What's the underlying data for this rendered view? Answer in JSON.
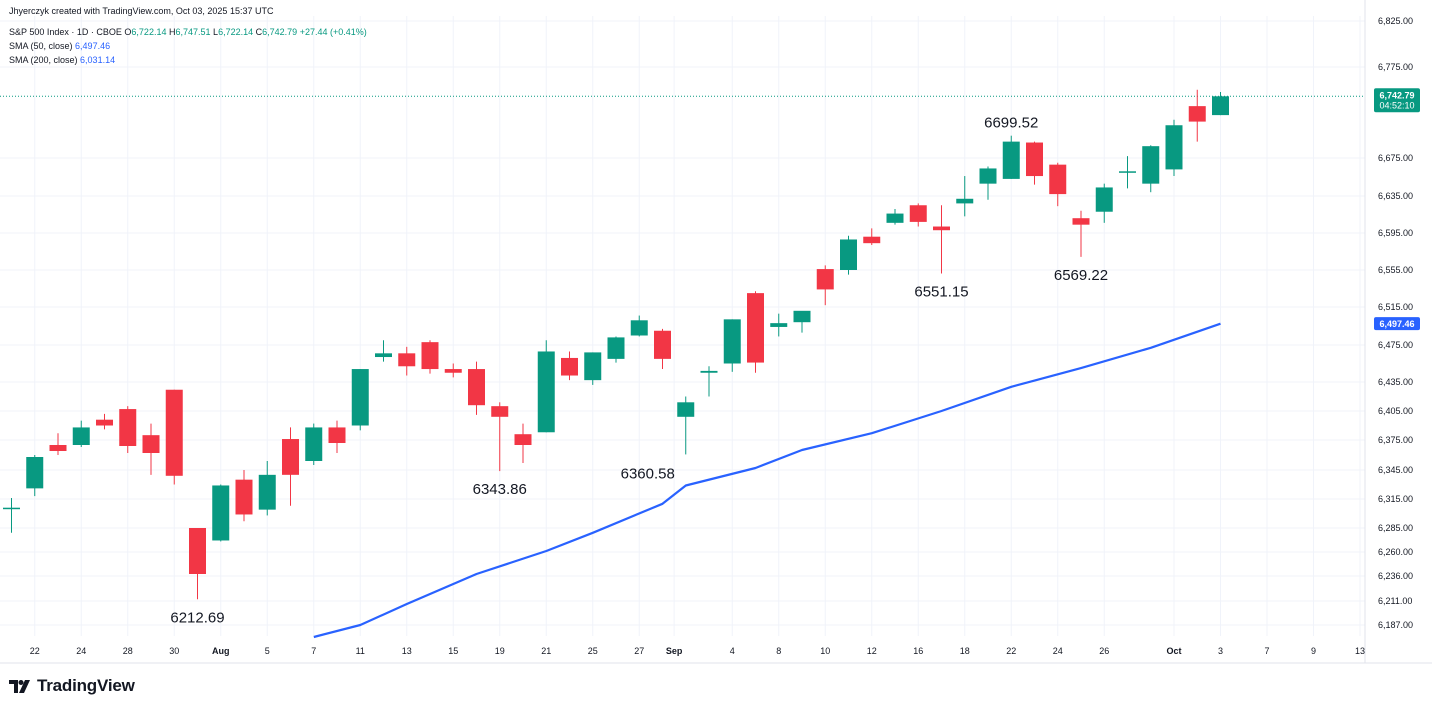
{
  "header": {
    "created_by": "Jhyerczyk created with TradingView.com, Oct 03, 2025 15:37 UTC"
  },
  "legend": {
    "symbol": "S&P 500 Index · 1D · CBOE",
    "o_label": "O",
    "o_value": "6,722.14",
    "h_label": "H",
    "h_value": "6,747.51",
    "l_label": "L",
    "l_value": "6,722.14",
    "c_label": "C",
    "c_value": "6,742.79",
    "change": "+27.44 (+0.41%)",
    "sma50_label": "SMA (50, close)",
    "sma50_value": "6,497.46",
    "sma200_label": "SMA (200, close)",
    "sma200_value": "6,031.14"
  },
  "branding": {
    "logo_text": "TradingView",
    "logo_icon": "tradingview-logo-icon"
  },
  "colors": {
    "up": "#089981",
    "down": "#f23645",
    "sma": "#2962ff",
    "grid": "#f0f3fa",
    "axis_text": "#131722"
  },
  "chart_data": {
    "type": "candlestick",
    "instrument": "S&P 500 Index",
    "interval": "1D",
    "exchange": "CBOE",
    "ylim": [
      6175,
      6830
    ],
    "y_ticks": [
      {
        "value": 6825,
        "label": "6,825.00"
      },
      {
        "value": 6775,
        "label": "6,775.00"
      },
      {
        "value": 6675,
        "label": "6,675.00"
      },
      {
        "value": 6635,
        "label": "6,635.00"
      },
      {
        "value": 6595,
        "label": "6,595.00"
      },
      {
        "value": 6555,
        "label": "6,555.00"
      },
      {
        "value": 6515,
        "label": "6,515.00"
      },
      {
        "value": 6475,
        "label": "6,475.00"
      },
      {
        "value": 6435,
        "label": "6,435.00"
      },
      {
        "value": 6405,
        "label": "6,405.00"
      },
      {
        "value": 6375,
        "label": "6,375.00"
      },
      {
        "value": 6345,
        "label": "6,345.00"
      },
      {
        "value": 6315,
        "label": "6,315.00"
      },
      {
        "value": 6285,
        "label": "6,285.00"
      },
      {
        "value": 6260,
        "label": "6,260.00"
      },
      {
        "value": 6236,
        "label": "6,236.00"
      },
      {
        "value": 6211,
        "label": "6,211.00"
      },
      {
        "value": 6187,
        "label": "6,187.00"
      }
    ],
    "x_ticks": [
      {
        "date": "2025-07-22",
        "label": "22"
      },
      {
        "date": "2025-07-24",
        "label": "24"
      },
      {
        "date": "2025-07-28",
        "label": "28"
      },
      {
        "date": "2025-07-30",
        "label": "30"
      },
      {
        "date": "2025-08-01",
        "label": "Aug"
      },
      {
        "date": "2025-08-05",
        "label": "5"
      },
      {
        "date": "2025-08-07",
        "label": "7"
      },
      {
        "date": "2025-08-11",
        "label": "11"
      },
      {
        "date": "2025-08-13",
        "label": "13"
      },
      {
        "date": "2025-08-15",
        "label": "15"
      },
      {
        "date": "2025-08-19",
        "label": "19"
      },
      {
        "date": "2025-08-21",
        "label": "21"
      },
      {
        "date": "2025-08-25",
        "label": "25"
      },
      {
        "date": "2025-08-27",
        "label": "27"
      },
      {
        "date": "2025-09-01",
        "label": "Sep"
      },
      {
        "date": "2025-09-04",
        "label": "4"
      },
      {
        "date": "2025-09-08",
        "label": "8"
      },
      {
        "date": "2025-09-10",
        "label": "10"
      },
      {
        "date": "2025-09-12",
        "label": "12"
      },
      {
        "date": "2025-09-16",
        "label": "16"
      },
      {
        "date": "2025-09-18",
        "label": "18"
      },
      {
        "date": "2025-09-22",
        "label": "22"
      },
      {
        "date": "2025-09-24",
        "label": "24"
      },
      {
        "date": "2025-09-26",
        "label": "26"
      },
      {
        "date": "2025-10-01",
        "label": "Oct"
      },
      {
        "date": "2025-10-03",
        "label": "3"
      },
      {
        "date": "2025-10-07",
        "label": "7"
      },
      {
        "date": "2025-10-09",
        "label": "9"
      },
      {
        "date": "2025-10-13",
        "label": "13"
      }
    ],
    "candles": [
      {
        "date": "2025-07-21",
        "o": 6305,
        "h": 6316,
        "l": 6280,
        "c": 6306
      },
      {
        "date": "2025-07-22",
        "o": 6326,
        "h": 6360,
        "l": 6318,
        "c": 6358
      },
      {
        "date": "2025-07-23",
        "o": 6370,
        "h": 6382,
        "l": 6360,
        "c": 6364
      },
      {
        "date": "2025-07-24",
        "o": 6370,
        "h": 6395,
        "l": 6368,
        "c": 6388
      },
      {
        "date": "2025-07-25",
        "o": 6396,
        "h": 6402,
        "l": 6386,
        "c": 6390
      },
      {
        "date": "2025-07-28",
        "o": 6407,
        "h": 6410,
        "l": 6362,
        "c": 6369
      },
      {
        "date": "2025-07-29",
        "o": 6380,
        "h": 6392,
        "l": 6340,
        "c": 6362
      },
      {
        "date": "2025-07-30",
        "o": 6427,
        "h": 6427,
        "l": 6330,
        "c": 6339
      },
      {
        "date": "2025-07-31",
        "o": 6285,
        "h": 6285,
        "l": 6212.69,
        "c": 6238
      },
      {
        "date": "2025-08-01",
        "o": 6272,
        "h": 6330,
        "l": 6271,
        "c": 6329
      },
      {
        "date": "2025-08-04",
        "o": 6335,
        "h": 6345,
        "l": 6292,
        "c": 6299
      },
      {
        "date": "2025-08-05",
        "o": 6304,
        "h": 6354,
        "l": 6298,
        "c": 6340
      },
      {
        "date": "2025-08-06",
        "o": 6376,
        "h": 6388,
        "l": 6308,
        "c": 6340
      },
      {
        "date": "2025-08-07",
        "o": 6354,
        "h": 6392,
        "l": 6350,
        "c": 6388
      },
      {
        "date": "2025-08-08",
        "o": 6388,
        "h": 6395,
        "l": 6362,
        "c": 6372
      },
      {
        "date": "2025-08-11",
        "o": 6390,
        "h": 6449,
        "l": 6385,
        "c": 6449
      },
      {
        "date": "2025-08-12",
        "o": 6462,
        "h": 6480,
        "l": 6457,
        "c": 6466
      },
      {
        "date": "2025-08-13",
        "o": 6466,
        "h": 6473,
        "l": 6442,
        "c": 6452
      },
      {
        "date": "2025-08-14",
        "o": 6478,
        "h": 6480,
        "l": 6444,
        "c": 6449
      },
      {
        "date": "2025-08-15",
        "o": 6449,
        "h": 6455,
        "l": 6440,
        "c": 6445
      },
      {
        "date": "2025-08-18",
        "o": 6449,
        "h": 6457,
        "l": 6401,
        "c": 6411
      },
      {
        "date": "2025-08-19",
        "o": 6410,
        "h": 6414,
        "l": 6343.86,
        "c": 6399
      },
      {
        "date": "2025-08-20",
        "o": 6381,
        "h": 6392,
        "l": 6352,
        "c": 6370
      },
      {
        "date": "2025-08-21",
        "o": 6383,
        "h": 6480,
        "l": 6383,
        "c": 6468
      },
      {
        "date": "2025-08-22",
        "o": 6461,
        "h": 6468,
        "l": 6437,
        "c": 6442
      },
      {
        "date": "2025-08-25",
        "o": 6437,
        "h": 6467,
        "l": 6432,
        "c": 6467
      },
      {
        "date": "2025-08-26",
        "o": 6460,
        "h": 6484,
        "l": 6456,
        "c": 6483
      },
      {
        "date": "2025-08-27",
        "o": 6485,
        "h": 6506,
        "l": 6484,
        "c": 6501
      },
      {
        "date": "2025-08-28",
        "o": 6490,
        "h": 6492,
        "l": 6449,
        "c": 6460
      },
      {
        "date": "2025-09-02",
        "o": 6399,
        "h": 6420,
        "l": 6360.58,
        "c": 6414
      },
      {
        "date": "2025-09-03",
        "o": 6445,
        "h": 6452,
        "l": 6420,
        "c": 6447
      },
      {
        "date": "2025-09-04",
        "o": 6455,
        "h": 6502,
        "l": 6446,
        "c": 6502
      },
      {
        "date": "2025-09-05",
        "o": 6530,
        "h": 6532,
        "l": 6445,
        "c": 6456
      },
      {
        "date": "2025-09-08",
        "o": 6494,
        "h": 6508,
        "l": 6484,
        "c": 6498
      },
      {
        "date": "2025-09-09",
        "o": 6499,
        "h": 6510,
        "l": 6488,
        "c": 6511
      },
      {
        "date": "2025-09-10",
        "o": 6556,
        "h": 6560,
        "l": 6517,
        "c": 6534
      },
      {
        "date": "2025-09-11",
        "o": 6555,
        "h": 6592,
        "l": 6550,
        "c": 6588
      },
      {
        "date": "2025-09-12",
        "o": 6591,
        "h": 6600,
        "l": 6582,
        "c": 6584
      },
      {
        "date": "2025-09-15",
        "o": 6606,
        "h": 6621,
        "l": 6604,
        "c": 6616
      },
      {
        "date": "2025-09-16",
        "o": 6625,
        "h": 6627,
        "l": 6602,
        "c": 6607
      },
      {
        "date": "2025-09-17",
        "o": 6602,
        "h": 6625,
        "l": 6551.15,
        "c": 6598
      },
      {
        "date": "2025-09-18",
        "o": 6627,
        "h": 6656,
        "l": 6613,
        "c": 6632
      },
      {
        "date": "2025-09-19",
        "o": 6648,
        "h": 6666,
        "l": 6631,
        "c": 6664
      },
      {
        "date": "2025-09-22",
        "o": 6653,
        "h": 6699.52,
        "l": 6653,
        "c": 6693
      },
      {
        "date": "2025-09-23",
        "o": 6692,
        "h": 6693,
        "l": 6647,
        "c": 6656
      },
      {
        "date": "2025-09-24",
        "o": 6668,
        "h": 6670,
        "l": 6624,
        "c": 6637
      },
      {
        "date": "2025-09-25",
        "o": 6611,
        "h": 6619,
        "l": 6569.22,
        "c": 6604
      },
      {
        "date": "2025-09-26",
        "o": 6618,
        "h": 6648,
        "l": 6606,
        "c": 6644
      },
      {
        "date": "2025-09-29",
        "o": 6661,
        "h": 6677,
        "l": 6643,
        "c": 6661
      },
      {
        "date": "2025-09-30",
        "o": 6648,
        "h": 6689,
        "l": 6639,
        "c": 6688
      },
      {
        "date": "2025-10-01",
        "o": 6663,
        "h": 6717,
        "l": 6656,
        "c": 6711
      },
      {
        "date": "2025-10-02",
        "o": 6732,
        "h": 6750,
        "l": 6693,
        "c": 6715
      },
      {
        "date": "2025-10-03",
        "o": 6722.14,
        "h": 6747.51,
        "l": 6722.14,
        "c": 6742.79
      }
    ],
    "sma50": {
      "name": "SMA (50, close)",
      "points": [
        {
          "date": "2025-08-07",
          "v": 6175
        },
        {
          "date": "2025-08-11",
          "v": 6187
        },
        {
          "date": "2025-08-13",
          "v": 6208
        },
        {
          "date": "2025-08-18",
          "v": 6238
        },
        {
          "date": "2025-08-21",
          "v": 6261
        },
        {
          "date": "2025-08-25",
          "v": 6280
        },
        {
          "date": "2025-08-28",
          "v": 6310
        },
        {
          "date": "2025-09-02",
          "v": 6329
        },
        {
          "date": "2025-09-05",
          "v": 6347
        },
        {
          "date": "2025-09-09",
          "v": 6365
        },
        {
          "date": "2025-09-12",
          "v": 6382
        },
        {
          "date": "2025-09-17",
          "v": 6405
        },
        {
          "date": "2025-09-22",
          "v": 6430
        },
        {
          "date": "2025-09-25",
          "v": 6450
        },
        {
          "date": "2025-09-30",
          "v": 6472
        },
        {
          "date": "2025-10-03",
          "v": 6497.46
        }
      ]
    },
    "annotations": [
      {
        "date": "2025-07-31",
        "value": 6212.69,
        "label": "6212.69",
        "position": "below"
      },
      {
        "date": "2025-08-19",
        "value": 6343.86,
        "label": "6343.86",
        "position": "below"
      },
      {
        "date": "2025-09-02",
        "value": 6360.58,
        "label": "6360.58",
        "position": "below-left"
      },
      {
        "date": "2025-09-17",
        "value": 6551.15,
        "label": "6551.15",
        "position": "below"
      },
      {
        "date": "2025-09-22",
        "value": 6699.52,
        "label": "6699.52",
        "position": "above"
      },
      {
        "date": "2025-09-25",
        "value": 6569.22,
        "label": "6569.22",
        "position": "below"
      }
    ],
    "price_tags": [
      {
        "value": 6742.79,
        "label": "6,742.79",
        "sublabel": "04:52:10",
        "kind": "last-price"
      },
      {
        "value": 6497.46,
        "label": "6,497.46",
        "kind": "sma50"
      }
    ]
  }
}
